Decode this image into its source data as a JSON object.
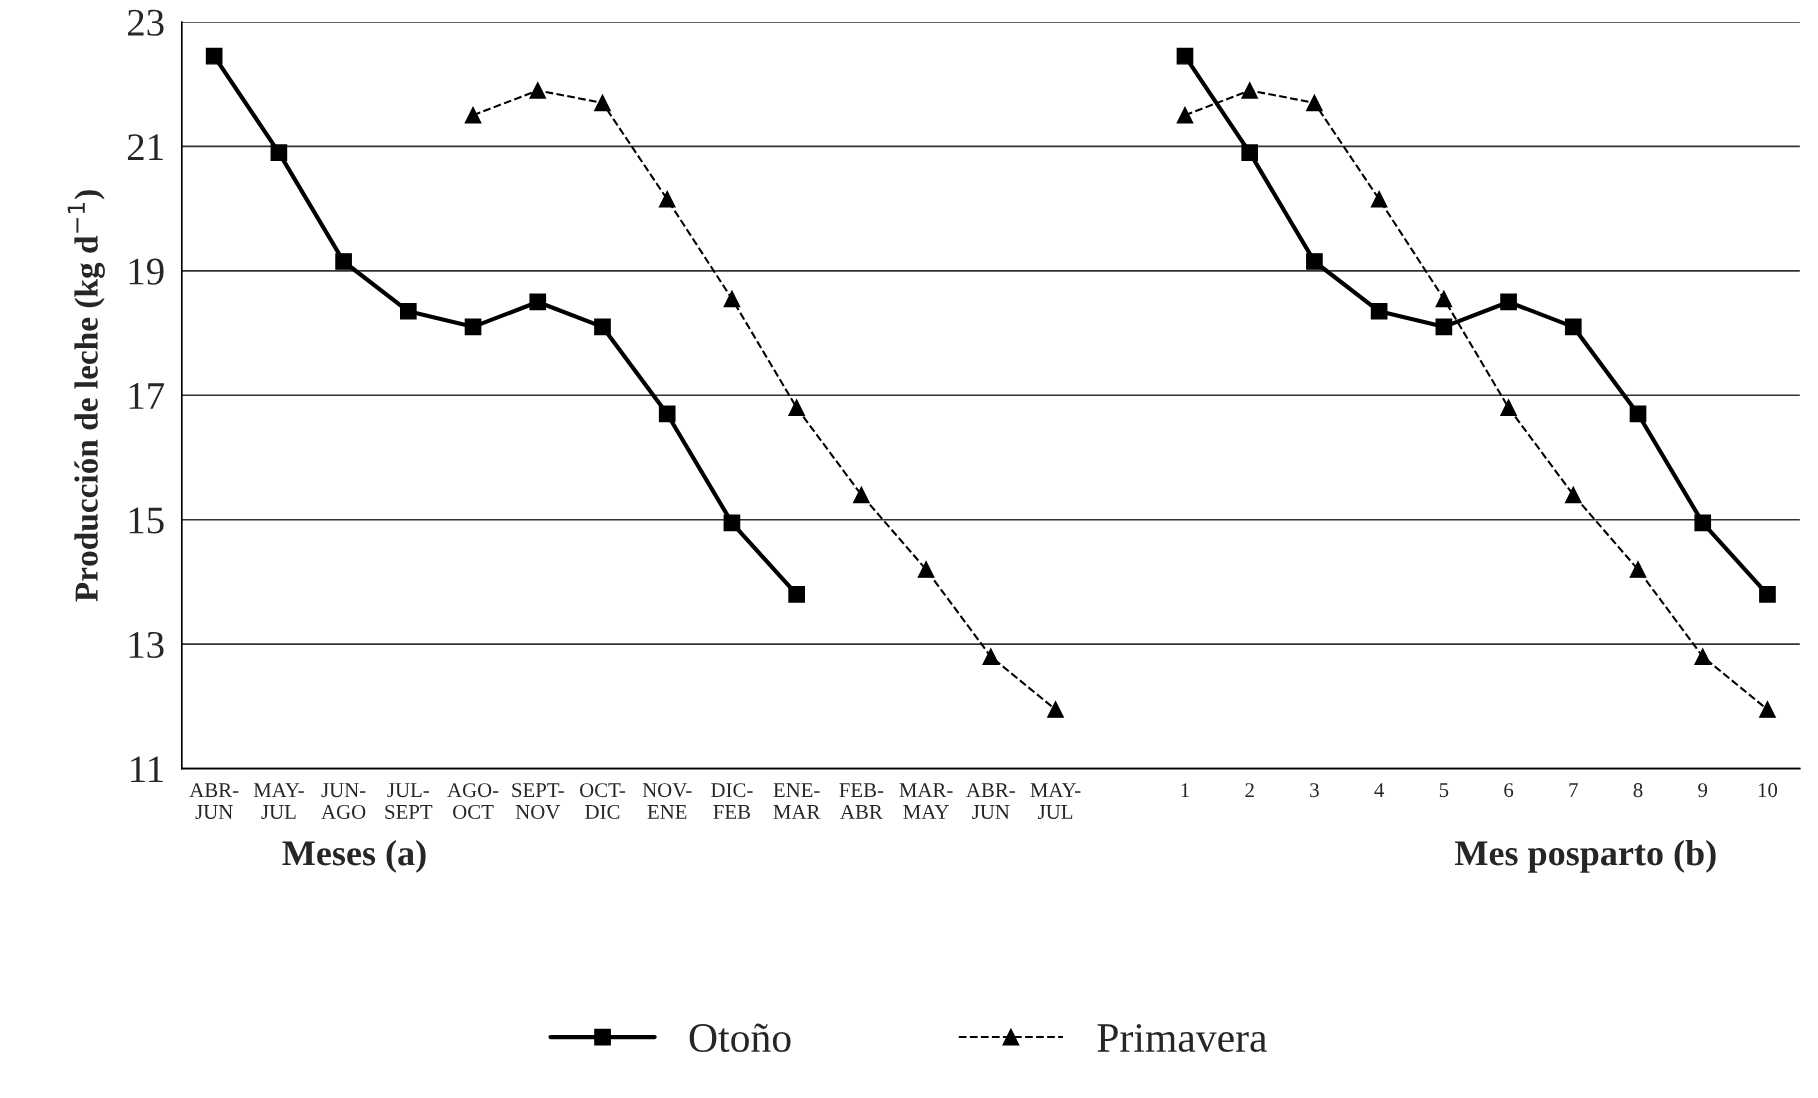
{
  "chart_data": {
    "type": "line",
    "ylabel": "Producción de leche (kg d$^{−1}$)",
    "categories": [
      "ABR-\nJUN",
      "MAY-\nJUL",
      "JUN-\nAGO",
      "JUL-\nSEPT",
      "AGO-\nOCT",
      "SEPT-\nNOV",
      "OCT-\nDIC",
      "NOV-\nENE",
      "DIC-\nFEB",
      "ENE-\nMAR",
      "FEB-\nABR",
      "MAR-\nMAY",
      "ABR-\nJUN",
      "MAY-\nJUL",
      null,
      "1",
      "2",
      "3",
      "4",
      "5",
      "6",
      "7",
      "8",
      "9",
      "10"
    ],
    "series": [
      {
        "name": "Otoño",
        "color": "#000000",
        "marker": "square",
        "line_style": "solid",
        "values": [
          22.45,
          20.9,
          19.15,
          18.35,
          18.1,
          18.5,
          18.1,
          16.7,
          14.95,
          13.8,
          null,
          null,
          null,
          null,
          null,
          22.45,
          20.9,
          19.15,
          18.35,
          18.1,
          18.5,
          18.1,
          16.7,
          14.95,
          13.8
        ]
      },
      {
        "name": "Primavera",
        "color": "#000000",
        "marker": "triangle",
        "line_style": "dashed",
        "values": [
          null,
          null,
          null,
          null,
          21.5,
          21.9,
          21.7,
          20.15,
          18.55,
          16.8,
          15.4,
          14.2,
          12.8,
          11.95,
          null,
          21.5,
          21.9,
          21.7,
          20.15,
          18.55,
          16.8,
          15.4,
          14.2,
          12.8,
          11.95
        ]
      }
    ],
    "ylim": [
      11,
      23
    ],
    "yticks": [
      11,
      13,
      15,
      17,
      19,
      21,
      23
    ],
    "grid": "y",
    "legend": "bottom",
    "annotations": [
      "Meses (a)",
      "Mes posparto (b)"
    ]
  }
}
